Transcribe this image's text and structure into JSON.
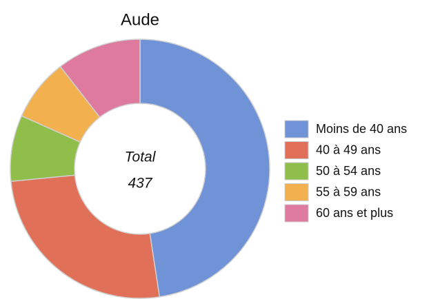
{
  "chart_data": {
    "type": "donut",
    "title": "Aude",
    "categories": [
      "Moins de 40 ans",
      "40 à 49 ans",
      "50 à 54 ans",
      "55 à 59 ans",
      "60 ans et plus"
    ],
    "values": [
      208,
      113,
      36,
      34,
      46
    ],
    "colors": [
      "#7092d6",
      "#e07058",
      "#8fbe4a",
      "#f2b04e",
      "#de7a9e"
    ],
    "center_label": "Total",
    "total": 437,
    "legend": "right"
  }
}
